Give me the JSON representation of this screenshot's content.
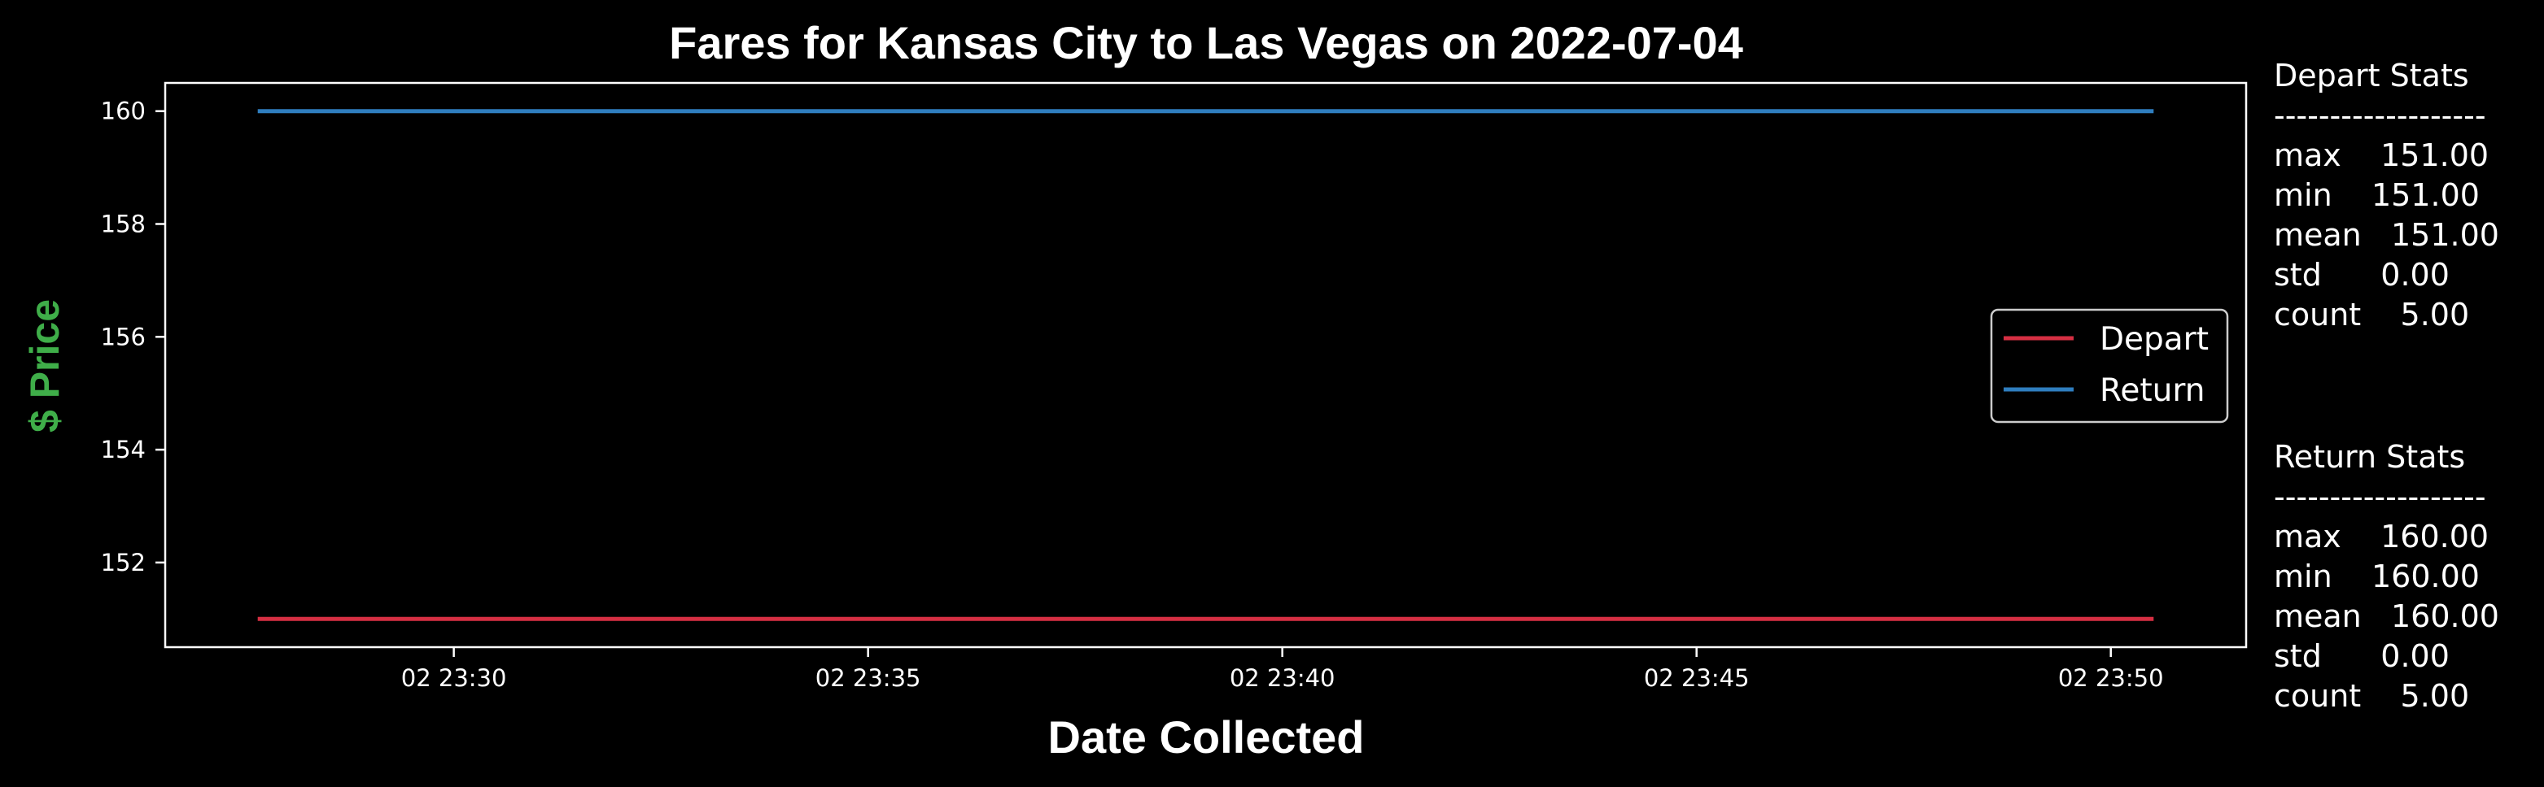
{
  "colors": {
    "background": "#000000",
    "depart": "#d62f43",
    "return": "#2f7ebf",
    "ylabel": "#3fae49"
  },
  "chart_data": {
    "type": "line",
    "title": "Fares for Kansas City to Las Vegas on 2022-07-04",
    "xlabel": "Date Collected",
    "ylabel": "$ Price",
    "xlim": [
      "02 23:26:31",
      "02 23:51:38"
    ],
    "ylim": [
      150.5,
      160.5
    ],
    "x_ticks": [
      "02 23:30",
      "02 23:35",
      "02 23:40",
      "02 23:45",
      "02 23:50"
    ],
    "y_ticks": [
      "160",
      "158",
      "156",
      "154",
      "152"
    ],
    "x": [
      "02 23:27:38",
      "02 23:50:31"
    ],
    "series": [
      {
        "name": "Depart",
        "values": [
          151,
          151
        ]
      },
      {
        "name": "Return",
        "values": [
          160,
          160
        ]
      }
    ],
    "legend_position": "center-right",
    "grid": false
  },
  "stats": {
    "depart": {
      "title": "Depart Stats",
      "separator": "-------------------",
      "rows": [
        "max    151.00",
        "min    151.00",
        "mean   151.00",
        "std      0.00",
        "count    5.00"
      ]
    },
    "return": {
      "title": "Return Stats",
      "separator": "-------------------",
      "rows": [
        "max    160.00",
        "min    160.00",
        "mean   160.00",
        "std      0.00",
        "count    5.00"
      ]
    }
  }
}
